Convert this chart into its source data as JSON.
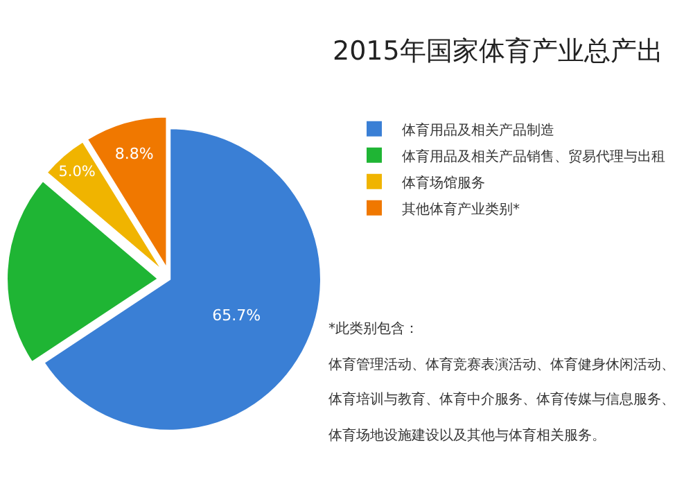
{
  "chart_data": {
    "type": "pie",
    "title": "2015年国家体育产业总产出",
    "categories": [
      "体育用品及相关产品制造",
      "体育用品及相关产品销售、贸易代理与出租",
      "体育场馆服务",
      "其他体育产业类别*"
    ],
    "values": [
      65.7,
      20.5,
      5.0,
      8.8
    ],
    "value_labels": [
      "65.7%",
      null,
      "5.0%",
      "8.8%"
    ],
    "colors": [
      "#3a7fd5",
      "#1fb534",
      "#f0b400",
      "#f07800"
    ],
    "legend": "top right",
    "annotations": [
      "*此类别包含：",
      "体育管理活动、体育竞赛表演活动、体育健身休闲活动、",
      "体育培训与教育、体育中介服务、体育传媒与信息服务、",
      "体育场地设施建设以及其他与体育相关服务。"
    ]
  }
}
